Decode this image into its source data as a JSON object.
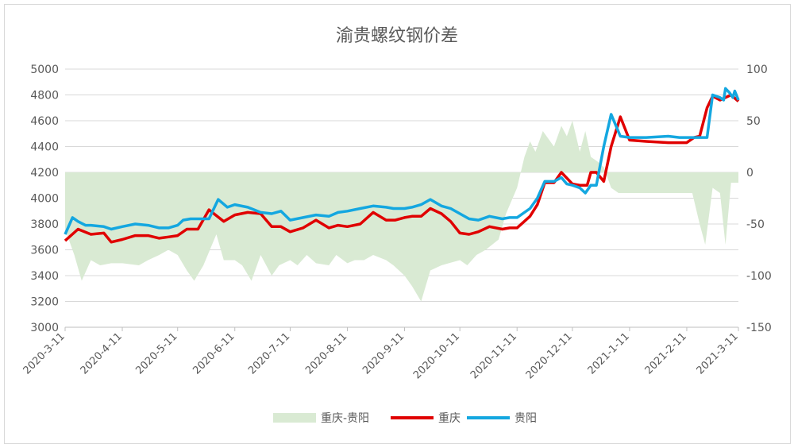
{
  "chart_data": {
    "type": "line",
    "title": "渝贵螺纹钢价差",
    "x_ticks": [
      "2020-3-11",
      "2020-4-11",
      "2020-5-11",
      "2020-6-11",
      "2020-7-11",
      "2020-8-11",
      "2020-9-11",
      "2020-10-11",
      "2020-11-11",
      "2020-12-11",
      "2021-1-11",
      "2021-2-11",
      "2021-3-11"
    ],
    "y_left": {
      "min": 3000,
      "max": 5000,
      "step": 200
    },
    "y_right": {
      "min": -150,
      "max": 100,
      "step": 50
    },
    "grid": true,
    "legend_position": "bottom",
    "legend": [
      "重庆-贵阳",
      "重庆",
      "贵阳"
    ],
    "series": [
      {
        "name": "重庆-贵阳",
        "type": "area",
        "axis": "right",
        "color": "#d9ead3",
        "x": [
          "2020-03-11",
          "2020-03-16",
          "2020-03-20",
          "2020-03-25",
          "2020-03-30",
          "2020-04-05",
          "2020-04-11",
          "2020-04-20",
          "2020-04-25",
          "2020-05-01",
          "2020-05-06",
          "2020-05-11",
          "2020-05-16",
          "2020-05-20",
          "2020-05-25",
          "2020-06-01",
          "2020-06-05",
          "2020-06-11",
          "2020-06-15",
          "2020-06-20",
          "2020-06-25",
          "2020-07-01",
          "2020-07-05",
          "2020-07-11",
          "2020-07-15",
          "2020-07-20",
          "2020-07-25",
          "2020-08-01",
          "2020-08-05",
          "2020-08-11",
          "2020-08-15",
          "2020-08-20",
          "2020-08-25",
          "2020-09-01",
          "2020-09-05",
          "2020-09-11",
          "2020-09-15",
          "2020-09-20",
          "2020-09-25",
          "2020-10-01",
          "2020-10-05",
          "2020-10-11",
          "2020-10-15",
          "2020-10-20",
          "2020-10-25",
          "2020-11-01",
          "2020-11-05",
          "2020-11-11",
          "2020-11-15",
          "2020-11-18",
          "2020-11-21",
          "2020-11-25",
          "2020-12-01",
          "2020-12-05",
          "2020-12-08",
          "2020-12-11",
          "2020-12-15",
          "2020-12-18",
          "2020-12-21",
          "2020-12-25",
          "2020-12-28",
          "2021-01-01",
          "2021-01-05",
          "2021-01-11",
          "2021-01-20",
          "2021-02-01",
          "2021-02-07",
          "2021-02-11",
          "2021-02-14",
          "2021-02-18",
          "2021-02-21",
          "2021-02-25",
          "2021-03-01",
          "2021-03-04",
          "2021-03-07",
          "2021-03-11"
        ],
        "values": [
          -55,
          -80,
          -105,
          -85,
          -90,
          -88,
          -88,
          -90,
          -85,
          -80,
          -75,
          -80,
          -95,
          -105,
          -90,
          -60,
          -85,
          -85,
          -90,
          -105,
          -80,
          -100,
          -90,
          -85,
          -90,
          -80,
          -88,
          -90,
          -80,
          -88,
          -85,
          -85,
          -80,
          -85,
          -90,
          -100,
          -110,
          -125,
          -95,
          -90,
          -88,
          -85,
          -90,
          -80,
          -75,
          -65,
          -40,
          -15,
          15,
          30,
          20,
          40,
          25,
          45,
          35,
          50,
          20,
          40,
          15,
          10,
          5,
          -15,
          -20,
          -20,
          -20,
          -20,
          -20,
          -20,
          -20,
          -50,
          -70,
          -15,
          -20,
          -70,
          -10,
          -10
        ]
      },
      {
        "name": "重庆",
        "type": "line",
        "axis": "left",
        "color": "#e00000",
        "x": [
          "2020-03-11",
          "2020-03-18",
          "2020-03-25",
          "2020-04-01",
          "2020-04-05",
          "2020-04-11",
          "2020-04-18",
          "2020-04-25",
          "2020-05-01",
          "2020-05-06",
          "2020-05-11",
          "2020-05-16",
          "2020-05-22",
          "2020-05-28",
          "2020-06-05",
          "2020-06-11",
          "2020-06-18",
          "2020-06-25",
          "2020-07-01",
          "2020-07-06",
          "2020-07-11",
          "2020-07-18",
          "2020-07-25",
          "2020-08-01",
          "2020-08-06",
          "2020-08-11",
          "2020-08-18",
          "2020-08-25",
          "2020-09-01",
          "2020-09-06",
          "2020-09-11",
          "2020-09-15",
          "2020-09-20",
          "2020-09-25",
          "2020-10-01",
          "2020-10-06",
          "2020-10-11",
          "2020-10-16",
          "2020-10-21",
          "2020-10-27",
          "2020-11-03",
          "2020-11-07",
          "2020-11-11",
          "2020-11-18",
          "2020-11-22",
          "2020-11-26",
          "2020-12-01",
          "2020-12-05",
          "2020-12-11",
          "2020-12-15",
          "2020-12-19",
          "2020-12-21",
          "2020-12-24",
          "2020-12-28",
          "2021-01-01",
          "2021-01-06",
          "2021-01-11",
          "2021-01-20",
          "2021-02-01",
          "2021-02-07",
          "2021-02-11",
          "2021-02-15",
          "2021-02-18",
          "2021-02-22",
          "2021-02-25",
          "2021-03-01",
          "2021-03-04",
          "2021-03-07",
          "2021-03-11"
        ],
        "values": [
          3670,
          3760,
          3720,
          3730,
          3660,
          3680,
          3710,
          3710,
          3690,
          3700,
          3710,
          3760,
          3760,
          3910,
          3820,
          3870,
          3890,
          3880,
          3780,
          3780,
          3740,
          3770,
          3830,
          3770,
          3790,
          3780,
          3800,
          3890,
          3830,
          3830,
          3850,
          3860,
          3860,
          3920,
          3880,
          3820,
          3730,
          3720,
          3740,
          3780,
          3760,
          3770,
          3770,
          3860,
          3950,
          4120,
          4120,
          4200,
          4110,
          4100,
          4100,
          4200,
          4200,
          4130,
          4400,
          4630,
          4450,
          4440,
          4430,
          4430,
          4430,
          4470,
          4480,
          4700,
          4790,
          4760,
          4780,
          4800,
          4750
        ]
      },
      {
        "name": "贵阳",
        "type": "line",
        "axis": "left",
        "color": "#14a7e0",
        "x": [
          "2020-03-11",
          "2020-03-15",
          "2020-03-18",
          "2020-03-22",
          "2020-03-25",
          "2020-04-01",
          "2020-04-05",
          "2020-04-11",
          "2020-04-18",
          "2020-04-25",
          "2020-05-01",
          "2020-05-06",
          "2020-05-11",
          "2020-05-14",
          "2020-05-18",
          "2020-05-23",
          "2020-05-28",
          "2020-06-02",
          "2020-06-07",
          "2020-06-11",
          "2020-06-18",
          "2020-06-25",
          "2020-07-01",
          "2020-07-06",
          "2020-07-11",
          "2020-07-18",
          "2020-07-25",
          "2020-08-01",
          "2020-08-06",
          "2020-08-11",
          "2020-08-18",
          "2020-08-25",
          "2020-09-01",
          "2020-09-05",
          "2020-09-11",
          "2020-09-15",
          "2020-09-20",
          "2020-09-25",
          "2020-10-01",
          "2020-10-06",
          "2020-10-11",
          "2020-10-16",
          "2020-10-21",
          "2020-10-27",
          "2020-11-03",
          "2020-11-07",
          "2020-11-11",
          "2020-11-18",
          "2020-11-22",
          "2020-11-26",
          "2020-12-01",
          "2020-12-05",
          "2020-12-08",
          "2020-12-11",
          "2020-12-15",
          "2020-12-18",
          "2020-12-21",
          "2020-12-24",
          "2020-12-28",
          "2021-01-01",
          "2021-01-06",
          "2021-01-11",
          "2021-01-20",
          "2021-02-01",
          "2021-02-07",
          "2021-02-11",
          "2021-02-15",
          "2021-02-18",
          "2021-02-22",
          "2021-02-25",
          "2021-03-01",
          "2021-03-03",
          "2021-03-04",
          "2021-03-06",
          "2021-03-08",
          "2021-03-09",
          "2021-03-11"
        ],
        "values": [
          3720,
          3850,
          3820,
          3790,
          3790,
          3780,
          3760,
          3780,
          3800,
          3790,
          3770,
          3770,
          3790,
          3830,
          3840,
          3840,
          3840,
          3990,
          3930,
          3950,
          3930,
          3890,
          3880,
          3900,
          3830,
          3850,
          3870,
          3860,
          3890,
          3900,
          3920,
          3940,
          3930,
          3920,
          3920,
          3930,
          3950,
          3990,
          3940,
          3920,
          3880,
          3840,
          3830,
          3860,
          3840,
          3850,
          3850,
          3920,
          4000,
          4130,
          4130,
          4160,
          4110,
          4100,
          4080,
          4040,
          4100,
          4100,
          4400,
          4650,
          4480,
          4470,
          4470,
          4480,
          4470,
          4470,
          4470,
          4470,
          4470,
          4800,
          4780,
          4760,
          4850,
          4820,
          4780,
          4830,
          4760
        ]
      }
    ]
  }
}
